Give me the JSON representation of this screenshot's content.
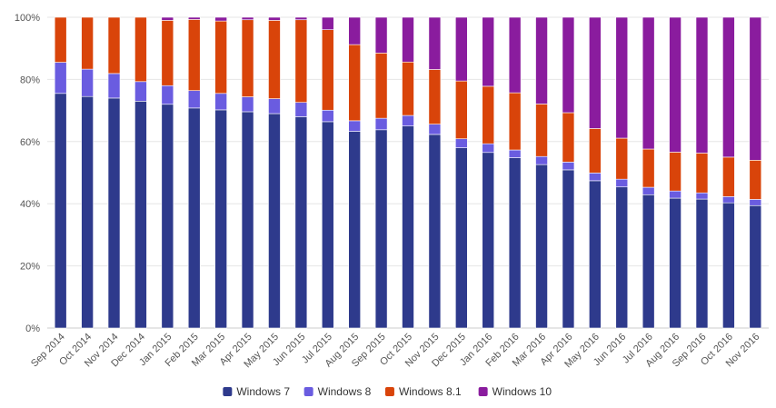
{
  "chart_data": {
    "type": "bar",
    "stacked": true,
    "percent": true,
    "categories": [
      "Sep 2014",
      "Oct 2014",
      "Nov 2014",
      "Dec 2014",
      "Jan 2015",
      "Feb 2015",
      "Mar 2015",
      "Apr 2015",
      "May 2015",
      "Jun 2015",
      "Jul 2015",
      "Aug 2015",
      "Sep 2015",
      "Oct 2015",
      "Nov 2015",
      "Dec 2015",
      "Jan 2016",
      "Feb 2016",
      "Mar 2016",
      "Apr 2016",
      "May 2016",
      "Jun 2016",
      "Jul 2016",
      "Aug 2016",
      "Sep 2016",
      "Oct 2016",
      "Nov 2016"
    ],
    "series": [
      {
        "name": "Windows 7",
        "color": "#2e3a8c",
        "values": [
          75.5,
          74.5,
          74.0,
          73.0,
          72.0,
          70.8,
          70.2,
          69.6,
          69.0,
          68.0,
          66.4,
          63.3,
          63.8,
          65.0,
          62.3,
          58.0,
          56.5,
          54.8,
          52.6,
          50.9,
          47.4,
          45.4,
          42.9,
          41.8,
          41.5,
          40.3,
          39.4
        ]
      },
      {
        "name": "Windows 8",
        "color": "#6a5ce0",
        "values": [
          10.0,
          8.8,
          7.9,
          6.3,
          6.0,
          5.6,
          5.3,
          4.8,
          4.8,
          4.6,
          3.7,
          3.4,
          3.7,
          3.4,
          3.3,
          2.9,
          2.8,
          2.5,
          2.6,
          2.5,
          2.5,
          2.5,
          2.4,
          2.3,
          2.0,
          2.0,
          2.0
        ]
      },
      {
        "name": "Windows 8.1",
        "color": "#d9440a",
        "values": [
          14.5,
          16.7,
          18.1,
          20.7,
          21.0,
          22.9,
          23.3,
          24.8,
          25.2,
          26.6,
          25.9,
          24.5,
          21.0,
          17.2,
          17.6,
          18.6,
          18.5,
          18.4,
          16.9,
          15.9,
          14.3,
          13.2,
          12.3,
          12.5,
          12.8,
          12.7,
          12.6
        ]
      },
      {
        "name": "Windows 10",
        "color": "#8a1c9e",
        "values": [
          0.0,
          0.0,
          0.0,
          0.0,
          1.0,
          0.7,
          1.2,
          0.8,
          1.0,
          0.8,
          4.0,
          8.8,
          11.5,
          14.4,
          16.8,
          20.5,
          22.2,
          24.3,
          27.9,
          30.7,
          35.8,
          38.9,
          42.4,
          43.4,
          43.7,
          45.0,
          46.0
        ]
      }
    ],
    "y_ticks": [
      "0%",
      "20%",
      "40%",
      "60%",
      "80%",
      "100%"
    ],
    "ylim": [
      0,
      100
    ],
    "grid": true,
    "legend_position": "bottom-center",
    "title": "",
    "xlabel": "",
    "ylabel": ""
  }
}
